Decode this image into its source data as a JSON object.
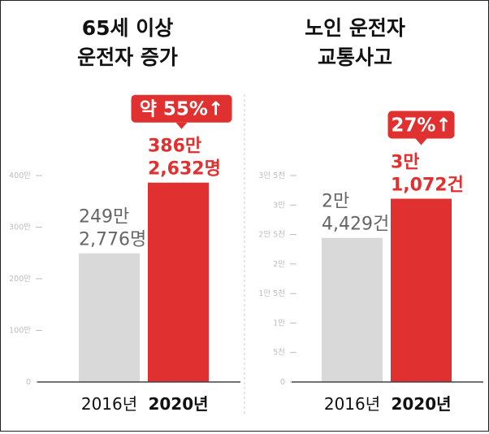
{
  "colors": {
    "grey_bar": "#d9d9d9",
    "red_bar": "#e03030",
    "red_text": "#e03030",
    "grey_text": "#666666",
    "dark_text": "#111111",
    "tick_text": "#bdbdbd",
    "divider": "#cccccc"
  },
  "chart_data": [
    {
      "type": "bar",
      "title": "65세 이상 운전자 증가",
      "title_lines": [
        "65세 이상",
        "운전자 증가"
      ],
      "categories": [
        "2016년",
        "2020년"
      ],
      "values": [
        2492776,
        3862632
      ],
      "value_labels": [
        [
          "249만",
          "2,776명"
        ],
        [
          "386만",
          "2,632명"
        ]
      ],
      "yticks": [
        0,
        1000000,
        2000000,
        3000000,
        4000000
      ],
      "ytick_labels": [
        "0",
        "100만",
        "200만",
        "300만",
        "400만"
      ],
      "ylim": [
        0,
        4000000
      ],
      "xlabel": "",
      "ylabel": "",
      "annotation": {
        "prefix": "약",
        "text": "55%",
        "arrow": "↑"
      },
      "grid": false
    },
    {
      "type": "bar",
      "title": "노인 운전자 교통사고",
      "title_lines": [
        "노인 운전자",
        "교통사고"
      ],
      "categories": [
        "2016년",
        "2020년"
      ],
      "values": [
        24429,
        31072
      ],
      "value_labels": [
        [
          "2만",
          "4,429건"
        ],
        [
          "3만",
          "1,072건"
        ]
      ],
      "yticks": [
        0,
        5000,
        10000,
        15000,
        20000,
        25000,
        30000,
        35000
      ],
      "ytick_labels": [
        "0",
        "5천",
        "1만",
        "1만 5천",
        "2만",
        "2만 5천",
        "3만",
        "3만 5천"
      ],
      "ylim": [
        0,
        35000
      ],
      "xlabel": "",
      "ylabel": "",
      "annotation": {
        "prefix": "",
        "text": "27%",
        "arrow": "↑"
      },
      "grid": false
    }
  ]
}
